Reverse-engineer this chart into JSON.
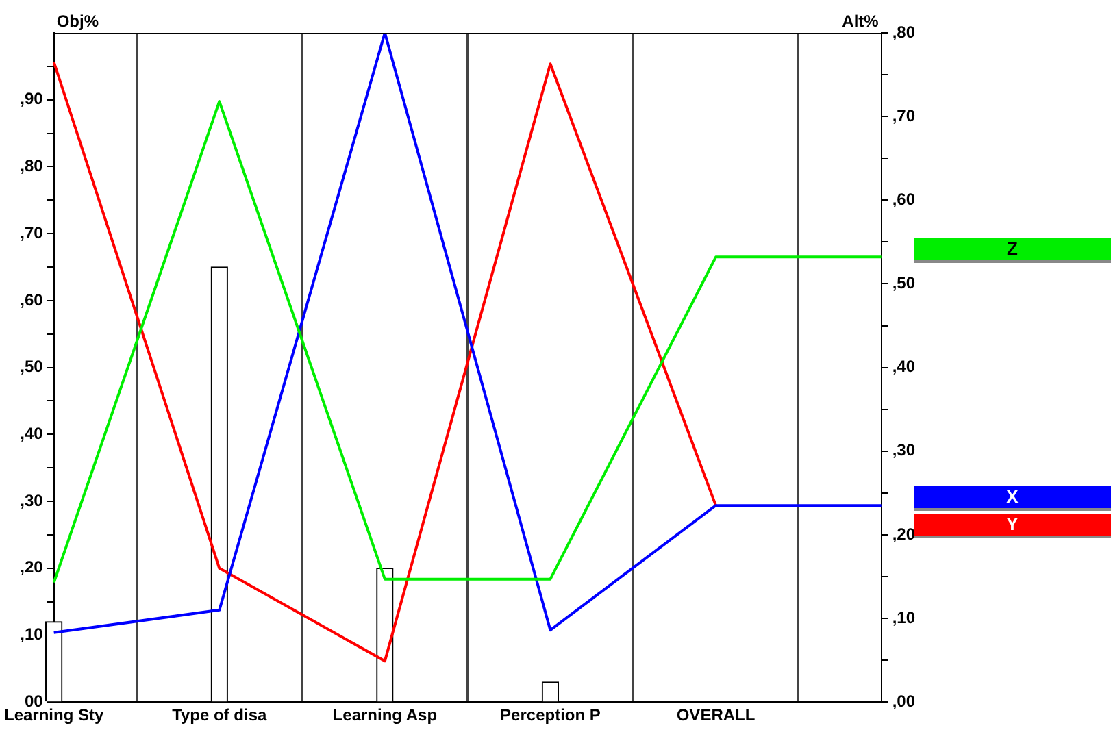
{
  "chart_data": {
    "type": "line",
    "ylabel": "Obj%",
    "y2label": "Alt%",
    "categories": [
      "Learning Sty",
      "Type of disa",
      "Learning Asp",
      "Perception P",
      "OVERALL",
      null
    ],
    "series": [
      {
        "type": "bar",
        "color": "#ffffff",
        "values": [
          12,
          65,
          20,
          3,
          null,
          null
        ]
      },
      {
        "name": "Z",
        "color": "#00ee00",
        "axis": "y2",
        "values": [
          14.3,
          71.8,
          14.7,
          14.7,
          53.2,
          53.2
        ]
      },
      {
        "name": "X",
        "color": "#0000ff",
        "axis": "y2",
        "values": [
          8.3,
          11,
          80,
          8.6,
          23.5,
          23.5
        ]
      },
      {
        "name": "Y",
        "color": "#ff0000",
        "axis": "y2",
        "values": [
          76.5,
          16,
          4.9,
          76.3,
          23.5,
          null
        ]
      }
    ],
    "ylim": [
      0,
      100
    ],
    "yticks": [
      {
        "value": 0,
        "label": "00"
      },
      {
        "value": 5,
        "label": null
      },
      {
        "value": 10,
        "label": ",10"
      },
      {
        "value": 15,
        "label": null
      },
      {
        "value": 20,
        "label": ",20"
      },
      {
        "value": 25,
        "label": null
      },
      {
        "value": 30,
        "label": ",30"
      },
      {
        "value": 35,
        "label": null
      },
      {
        "value": 40,
        "label": ",40"
      },
      {
        "value": 45,
        "label": null
      },
      {
        "value": 50,
        "label": ",50"
      },
      {
        "value": 55,
        "label": null
      },
      {
        "value": 60,
        "label": ",60"
      },
      {
        "value": 65,
        "label": null
      },
      {
        "value": 70,
        "label": ",70"
      },
      {
        "value": 75,
        "label": null
      },
      {
        "value": 80,
        "label": ",80"
      },
      {
        "value": 85,
        "label": null
      },
      {
        "value": 90,
        "label": ",90"
      },
      {
        "value": 95,
        "label": null
      }
    ],
    "y2lim": [
      0,
      80
    ],
    "y2ticks": [
      {
        "value": 0,
        "label": ",00"
      },
      {
        "value": 5,
        "label": null
      },
      {
        "value": 10,
        "label": ",10"
      },
      {
        "value": 15,
        "label": null
      },
      {
        "value": 20,
        "label": ",20"
      },
      {
        "value": 25,
        "label": null
      },
      {
        "value": 30,
        "label": ",30"
      },
      {
        "value": 35,
        "label": null
      },
      {
        "value": 40,
        "label": ",40"
      },
      {
        "value": 45,
        "label": null
      },
      {
        "value": 50,
        "label": ",50"
      },
      {
        "value": 55,
        "label": null
      },
      {
        "value": 60,
        "label": ",60"
      },
      {
        "value": 65,
        "label": null
      },
      {
        "value": 70,
        "label": ",70"
      },
      {
        "value": 75,
        "label": null
      },
      {
        "value": 80,
        "label": ",80"
      }
    ],
    "grid": "x",
    "legend": "right",
    "marker": "none",
    "line_style": "solid"
  }
}
